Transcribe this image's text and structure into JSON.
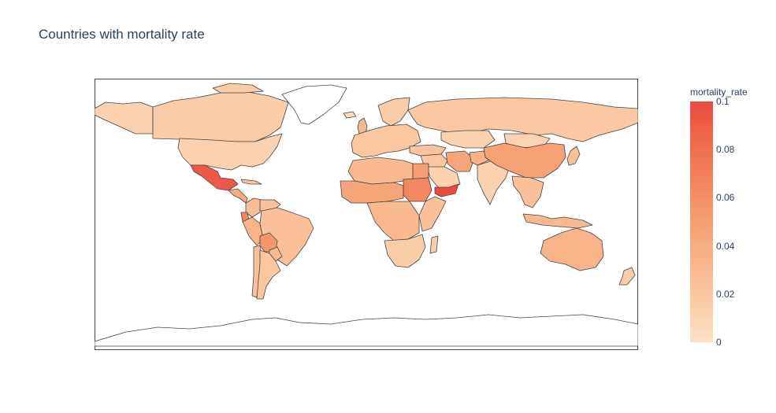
{
  "title": "Countries with mortality rate",
  "colorbar": {
    "title": "mortality_rate",
    "range": [
      0,
      0.1
    ],
    "colorscale": [
      "#fde0c5",
      "#facba6",
      "#f8b58b",
      "#f59e72",
      "#f2855d",
      "#ef6a4c",
      "#eb4a40"
    ],
    "ticks": [
      {
        "value": 0,
        "label": "0"
      },
      {
        "value": 0.02,
        "label": "0.02"
      },
      {
        "value": 0.04,
        "label": "0.04"
      },
      {
        "value": 0.06,
        "label": "0.06"
      },
      {
        "value": 0.08,
        "label": "0.08"
      },
      {
        "value": 0.1,
        "label": "0.1"
      }
    ]
  },
  "map": {
    "projection": "equirectangular",
    "border_color": "#444444",
    "frame_color": "#444444",
    "no_data_fill": "#ffffff"
  },
  "regions": [
    {
      "name": "Canada",
      "value": 0.016
    },
    {
      "name": "United States",
      "value": 0.012
    },
    {
      "name": "Alaska",
      "value": 0.012
    },
    {
      "name": "Mexico",
      "value": 0.092
    },
    {
      "name": "Central America",
      "value": 0.04
    },
    {
      "name": "Cuba",
      "value": 0.02
    },
    {
      "name": "Colombia",
      "value": 0.028
    },
    {
      "name": "Venezuela",
      "value": 0.024
    },
    {
      "name": "Ecuador",
      "value": 0.065
    },
    {
      "name": "Peru",
      "value": 0.035
    },
    {
      "name": "Brazil",
      "value": 0.025
    },
    {
      "name": "Bolivia",
      "value": 0.055
    },
    {
      "name": "Paraguay",
      "value": 0.03
    },
    {
      "name": "Argentina",
      "value": 0.02
    },
    {
      "name": "Chile",
      "value": 0.025
    },
    {
      "name": "Greenland",
      "value": null
    },
    {
      "name": "Iceland",
      "value": 0.005
    },
    {
      "name": "Europe",
      "value": 0.02
    },
    {
      "name": "United Kingdom",
      "value": 0.03
    },
    {
      "name": "Scandinavia",
      "value": 0.015
    },
    {
      "name": "Russia",
      "value": 0.018
    },
    {
      "name": "Kazakhstan",
      "value": 0.012
    },
    {
      "name": "Turkey",
      "value": 0.022
    },
    {
      "name": "Middle East",
      "value": 0.02
    },
    {
      "name": "Iran",
      "value": 0.045
    },
    {
      "name": "Saudi Arabia",
      "value": 0.012
    },
    {
      "name": "Yemen",
      "value": 0.1
    },
    {
      "name": "Afghanistan",
      "value": 0.035
    },
    {
      "name": "India",
      "value": 0.012
    },
    {
      "name": "China",
      "value": 0.048
    },
    {
      "name": "Mongolia",
      "value": 0.01
    },
    {
      "name": "Japan",
      "value": 0.025
    },
    {
      "name": "Southeast Asia",
      "value": 0.025
    },
    {
      "name": "Indonesia",
      "value": 0.03
    },
    {
      "name": "Australia",
      "value": 0.035
    },
    {
      "name": "New Zealand",
      "value": 0.015
    },
    {
      "name": "North Africa",
      "value": 0.03
    },
    {
      "name": "Egypt",
      "value": 0.05
    },
    {
      "name": "Sudan",
      "value": 0.065
    },
    {
      "name": "Sahel",
      "value": 0.045
    },
    {
      "name": "Central Africa",
      "value": 0.03
    },
    {
      "name": "East Africa",
      "value": 0.025
    },
    {
      "name": "Southern Africa",
      "value": 0.015
    },
    {
      "name": "Madagascar",
      "value": 0.015
    },
    {
      "name": "Antarctica",
      "value": null
    }
  ]
}
